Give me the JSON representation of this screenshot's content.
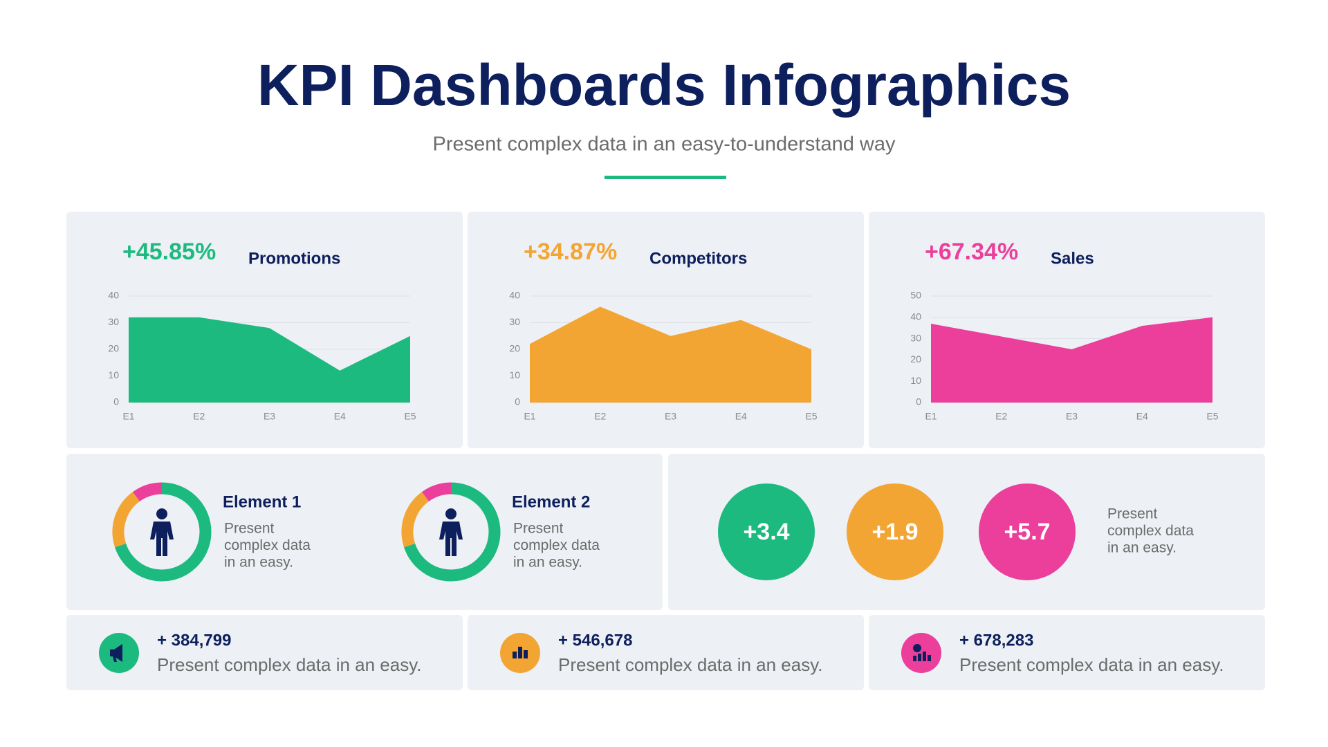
{
  "header": {
    "title": "KPI Dashboards Infographics",
    "subtitle": "Present complex data in an easy-to-understand way"
  },
  "chart_data": [
    {
      "type": "area",
      "title": "Promotions",
      "annotation": "+45.85%",
      "color": "#1dba80",
      "categories": [
        "E1",
        "E2",
        "E3",
        "E4",
        "E5"
      ],
      "values": [
        32,
        32,
        28,
        12,
        25
      ],
      "ylim": [
        0,
        40
      ],
      "yticks": [
        0,
        10,
        20,
        30,
        40
      ],
      "grid": true
    },
    {
      "type": "area",
      "title": "Competitors",
      "annotation": "+34.87%",
      "color": "#f3a533",
      "categories": [
        "E1",
        "E2",
        "E3",
        "E4",
        "E5"
      ],
      "values": [
        22,
        36,
        25,
        31,
        20
      ],
      "ylim": [
        0,
        40
      ],
      "yticks": [
        0,
        10,
        20,
        30,
        40
      ],
      "grid": true
    },
    {
      "type": "area",
      "title": "Sales",
      "annotation": "+67.34%",
      "color": "#eb3f9b",
      "categories": [
        "E1",
        "E2",
        "E3",
        "E4",
        "E5"
      ],
      "values": [
        37,
        31,
        25,
        36,
        40
      ],
      "ylim": [
        0,
        50
      ],
      "yticks": [
        0,
        10,
        20,
        30,
        40,
        50
      ],
      "grid": true
    },
    {
      "type": "donut",
      "title": "Element 1",
      "description": [
        "Present",
        "complex data",
        "in an easy."
      ],
      "values": [
        70,
        20,
        10
      ],
      "colors": [
        "#1dba80",
        "#f3a533",
        "#eb3f9b"
      ]
    },
    {
      "type": "donut",
      "title": "Element 2",
      "description": [
        "Present",
        "complex data",
        "in an easy."
      ],
      "values": [
        70,
        20,
        10
      ],
      "colors": [
        "#1dba80",
        "#f3a533",
        "#eb3f9b"
      ]
    }
  ],
  "highlights": {
    "items": [
      {
        "label": "+3.4",
        "color": "#1dba80"
      },
      {
        "label": "+1.9",
        "color": "#f3a533"
      },
      {
        "label": "+5.7",
        "color": "#eb3f9b"
      }
    ],
    "description": [
      "Present",
      "complex data",
      "in an easy."
    ]
  },
  "stats": [
    {
      "value": "+ 384,799",
      "text": "Present complex data in an easy.",
      "color": "#1dba80"
    },
    {
      "value": "+ 546,678",
      "text": "Present complex data in an easy.",
      "color": "#f3a533"
    },
    {
      "value": "+ 678,283",
      "text": "Present complex data in an easy.",
      "color": "#eb3f9b"
    }
  ]
}
